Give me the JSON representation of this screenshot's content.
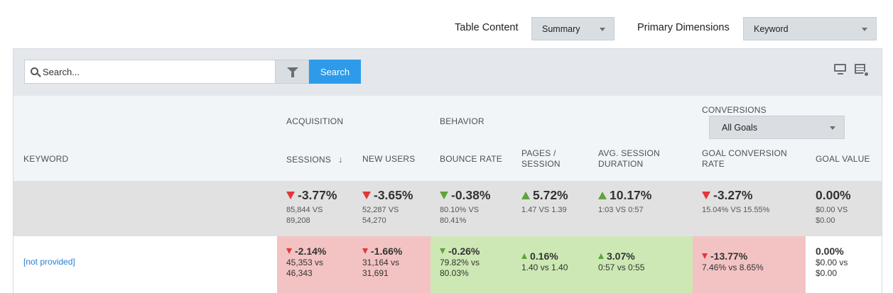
{
  "controls": {
    "table_content_label": "Table Content",
    "table_content_value": "Summary",
    "primary_dimensions_label": "Primary Dimensions",
    "primary_dimensions_value": "Keyword"
  },
  "toolbar": {
    "search_placeholder": "Search...",
    "search_button": "Search",
    "icons": [
      "search-icon",
      "filter-icon",
      "monitor-icon",
      "table-settings-icon"
    ]
  },
  "headers": {
    "keyword": "KEYWORD",
    "group_acquisition": "ACQUISITION",
    "group_behavior": "BEHAVIOR",
    "group_conversions": "CONVERSIONS",
    "goals_select": "All Goals",
    "sessions": "SESSIONS",
    "sort_indicator": "↓",
    "new_users": "NEW USERS",
    "bounce_rate": "BOUNCE RATE",
    "pages_session_1": "PAGES /",
    "pages_session_2": "SESSION",
    "avg_session_1": "AVG. SESSION",
    "avg_session_2": "DURATION",
    "goal_conv_1": "GOAL CONVERSION",
    "goal_conv_2": "RATE",
    "goal_value": "GOAL VALUE"
  },
  "summary": {
    "sessions": {
      "change": "-3.77%",
      "line1": "85,844 VS",
      "line2": "89,208"
    },
    "new_users": {
      "change": "-3.65%",
      "line1": "52,287 VS",
      "line2": "54,270"
    },
    "bounce_rate": {
      "change": "-0.38%",
      "line1": "80.10% VS",
      "line2": "80.41%"
    },
    "pages_session": {
      "change": "5.72%",
      "line1": "1.47 VS 1.39"
    },
    "avg_session": {
      "change": "10.17%",
      "line1": "1:03 VS 0:57"
    },
    "goal_conv": {
      "change": "-3.27%",
      "line1": "15.04% VS 15.55%"
    },
    "goal_value": {
      "change": "0.00%",
      "line1": "$0.00 VS",
      "line2": "$0.00"
    }
  },
  "rows": [
    {
      "keyword": "[not provided]",
      "sessions": {
        "change": "-2.14%",
        "line1": "45,353 vs",
        "line2": "46,343"
      },
      "new_users": {
        "change": "-1.66%",
        "line1": "31,164 vs",
        "line2": "31,691"
      },
      "bounce_rate": {
        "change": "-0.26%",
        "line1": "79.82% vs",
        "line2": "80.03%"
      },
      "pages_session": {
        "change": "0.16%",
        "line1": "1.40 vs 1.40"
      },
      "avg_session": {
        "change": "3.07%",
        "line1": "0:57 vs 0:55"
      },
      "goal_conv": {
        "change": "-13.77%",
        "line1": "7.46% vs 8.65%"
      },
      "goal_value": {
        "change": "0.00%",
        "line1": "$0.00 vs",
        "line2": "$0.00"
      }
    }
  ],
  "colors": {
    "accent": "#2d9bea",
    "negative": "#e0383a",
    "positive": "#5ea43c",
    "negative_bg": "#f3c3c3",
    "positive_bg": "#cde8b4"
  }
}
